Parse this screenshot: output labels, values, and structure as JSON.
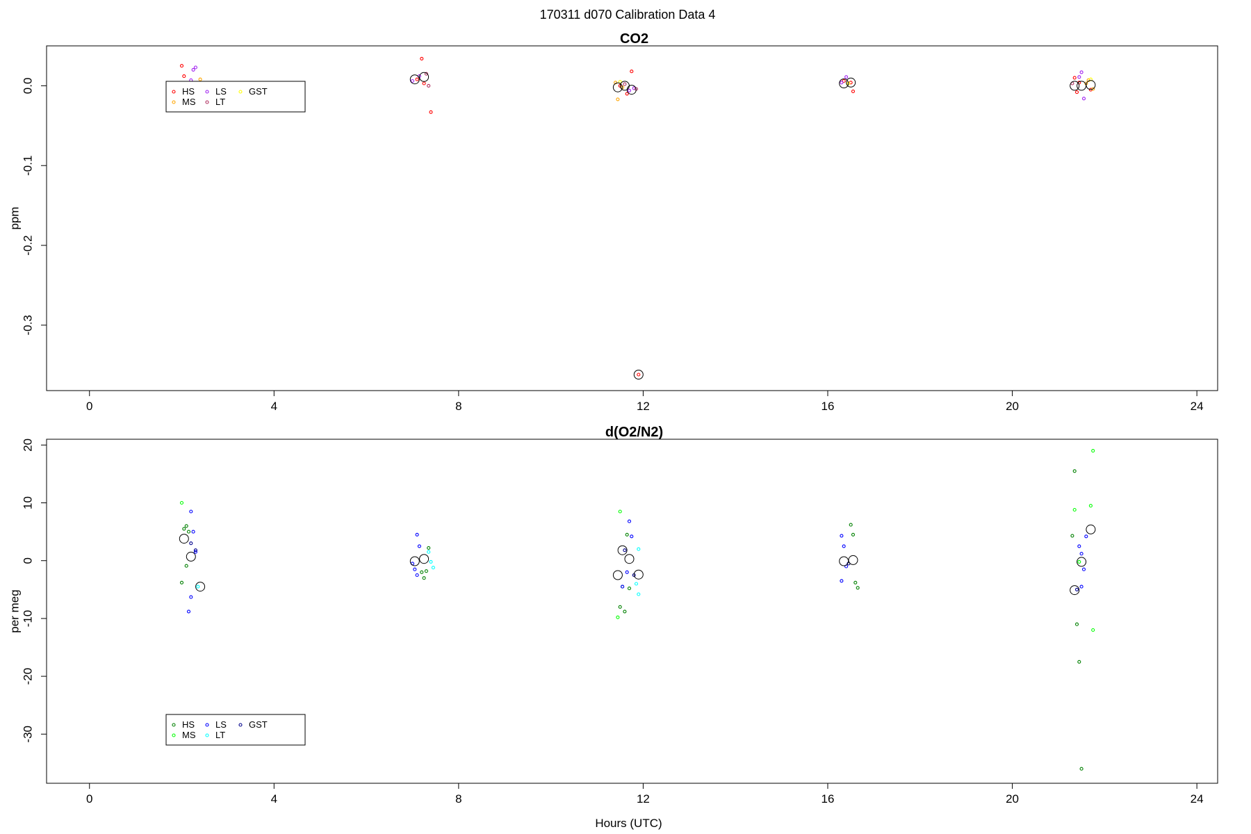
{
  "figure": {
    "title": "170311   d070   Calibration Data 4"
  },
  "chart_data": [
    {
      "type": "scatter",
      "title": "CO2",
      "xlabel": "",
      "ylabel": "ppm",
      "xlim": [
        -0.93,
        24.45
      ],
      "ylim": [
        -0.382,
        0.05
      ],
      "xticks": [
        "0",
        "4",
        "8",
        "12",
        "16",
        "20",
        "24"
      ],
      "yticks": [
        "0.0",
        "-0.1",
        "-0.2",
        "-0.3"
      ],
      "grid": false,
      "legend_position": "top-left",
      "series": [
        {
          "name": "HS",
          "color": "#ff0000",
          "points": [
            [
              2.0,
              0.025
            ],
            [
              2.05,
              0.012
            ],
            [
              7.1,
              0.008
            ],
            [
              7.2,
              0.034
            ],
            [
              7.25,
              0.003
            ],
            [
              7.4,
              -0.033
            ],
            [
              11.5,
              0.0
            ],
            [
              11.65,
              -0.01
            ],
            [
              11.75,
              0.018
            ],
            [
              11.9,
              -0.362
            ],
            [
              16.35,
              0.006
            ],
            [
              16.5,
              0.004
            ],
            [
              16.55,
              -0.007
            ],
            [
              21.35,
              0.01
            ],
            [
              21.4,
              -0.008
            ],
            [
              21.45,
              0.004
            ],
            [
              21.7,
              -0.005
            ]
          ]
        },
        {
          "name": "MS",
          "color": "#ffa500",
          "points": [
            [
              2.4,
              0.008
            ],
            [
              11.4,
              0.004
            ],
            [
              11.45,
              -0.017
            ],
            [
              11.55,
              -0.002
            ],
            [
              21.6,
              0.003
            ],
            [
              21.75,
              -0.004
            ],
            [
              21.65,
              0.007
            ]
          ]
        },
        {
          "name": "LS",
          "color": "#a020f0",
          "points": [
            [
              2.2,
              0.007
            ],
            [
              2.25,
              0.02
            ],
            [
              2.3,
              0.023
            ],
            [
              7.0,
              0.006
            ],
            [
              7.15,
              0.012
            ],
            [
              11.7,
              -0.006
            ],
            [
              11.8,
              -0.003
            ],
            [
              16.3,
              0.004
            ],
            [
              16.4,
              0.011
            ],
            [
              21.5,
              0.017
            ],
            [
              21.55,
              -0.016
            ],
            [
              21.45,
              0.011
            ]
          ]
        },
        {
          "name": "LT",
          "color": "#b03060",
          "points": [
            [
              7.3,
              0.015
            ],
            [
              7.35,
              0.0
            ],
            [
              11.6,
              0.002
            ],
            [
              11.85,
              -0.004
            ],
            [
              21.3,
              0.003
            ]
          ]
        },
        {
          "name": "GST",
          "color": "#ffff00",
          "points": [
            [
              11.5,
              0.005
            ],
            [
              16.45,
              0.003
            ],
            [
              21.7,
              0.008
            ]
          ]
        },
        {
          "name": "",
          "color": "#000000",
          "marker": "mean",
          "points": [
            [
              7.05,
              0.008
            ],
            [
              7.25,
              0.011
            ],
            [
              11.45,
              -0.002
            ],
            [
              11.6,
              0.0
            ],
            [
              11.75,
              -0.005
            ],
            [
              11.9,
              -0.362
            ],
            [
              16.35,
              0.003
            ],
            [
              16.5,
              0.004
            ],
            [
              21.35,
              0.0
            ],
            [
              21.5,
              0.0
            ],
            [
              21.7,
              0.001
            ]
          ]
        }
      ]
    },
    {
      "type": "scatter",
      "title": "d(O2/N2)",
      "xlabel": "Hours (UTC)",
      "ylabel": "per meg",
      "xlim": [
        -0.93,
        24.45
      ],
      "ylim": [
        -38.5,
        21.0
      ],
      "xticks": [
        "0",
        "4",
        "8",
        "12",
        "16",
        "20",
        "24"
      ],
      "yticks": [
        "20",
        "10",
        "0",
        "-10",
        "-20",
        "-30"
      ],
      "grid": false,
      "legend_position": "bottom-left",
      "series": [
        {
          "name": "HS",
          "color": "#008000",
          "points": [
            [
              2.05,
              5.5
            ],
            [
              2.1,
              6.0
            ],
            [
              2.15,
              5.0
            ],
            [
              2.0,
              -3.8
            ],
            [
              2.1,
              -0.9
            ],
            [
              7.2,
              -2.0
            ],
            [
              7.3,
              -1.8
            ],
            [
              7.25,
              -3.0
            ],
            [
              7.35,
              2.2
            ],
            [
              11.55,
              -4.5
            ],
            [
              11.65,
              4.5
            ],
            [
              11.7,
              -4.8
            ],
            [
              11.5,
              -8.0
            ],
            [
              11.6,
              -8.8
            ],
            [
              16.5,
              6.2
            ],
            [
              16.55,
              4.5
            ],
            [
              16.6,
              -3.8
            ],
            [
              16.65,
              -4.7
            ],
            [
              21.35,
              15.5
            ],
            [
              21.4,
              -11.0
            ],
            [
              21.45,
              -17.5
            ],
            [
              21.5,
              -36.0
            ],
            [
              21.3,
              4.3
            ]
          ]
        },
        {
          "name": "MS",
          "color": "#00ff00",
          "points": [
            [
              2.0,
              10.0
            ],
            [
              11.5,
              8.5
            ],
            [
              11.45,
              -9.8
            ],
            [
              21.35,
              8.8
            ],
            [
              21.7,
              9.5
            ],
            [
              21.75,
              -12.0
            ],
            [
              21.75,
              19.0
            ],
            [
              21.45,
              -0.2
            ]
          ]
        },
        {
          "name": "LS",
          "color": "#0000ff",
          "points": [
            [
              2.2,
              8.5
            ],
            [
              2.25,
              5.0
            ],
            [
              2.3,
              1.5
            ],
            [
              2.2,
              -6.3
            ],
            [
              2.15,
              -8.8
            ],
            [
              7.1,
              4.5
            ],
            [
              7.15,
              2.5
            ],
            [
              7.0,
              -0.5
            ],
            [
              7.05,
              -1.5
            ],
            [
              7.1,
              -2.5
            ],
            [
              11.7,
              6.8
            ],
            [
              11.75,
              4.2
            ],
            [
              11.65,
              -2.0
            ],
            [
              11.55,
              -4.5
            ],
            [
              16.3,
              4.3
            ],
            [
              16.35,
              2.5
            ],
            [
              16.3,
              -3.5
            ],
            [
              16.4,
              -1.0
            ],
            [
              21.45,
              2.5
            ],
            [
              21.5,
              1.2
            ],
            [
              21.55,
              -1.5
            ],
            [
              21.6,
              4.2
            ],
            [
              21.5,
              -4.5
            ]
          ]
        },
        {
          "name": "LT",
          "color": "#00ffff",
          "points": [
            [
              2.35,
              -4.5
            ],
            [
              7.35,
              1.5
            ],
            [
              7.4,
              -0.2
            ],
            [
              7.45,
              -1.2
            ],
            [
              11.9,
              2.0
            ],
            [
              11.85,
              -4.0
            ],
            [
              11.9,
              -5.8
            ]
          ]
        },
        {
          "name": "GST",
          "color": "#00008b",
          "points": [
            [
              2.2,
              3.0
            ],
            [
              2.3,
              1.8
            ],
            [
              11.6,
              1.8
            ],
            [
              11.8,
              -2.5
            ],
            [
              16.45,
              -0.5
            ],
            [
              21.4,
              -5.0
            ]
          ]
        },
        {
          "name": "",
          "color": "#000000",
          "marker": "mean",
          "points": [
            [
              2.05,
              3.8
            ],
            [
              2.2,
              0.7
            ],
            [
              2.4,
              -4.5
            ],
            [
              7.05,
              -0.1
            ],
            [
              7.25,
              0.3
            ],
            [
              11.45,
              -2.5
            ],
            [
              11.55,
              1.8
            ],
            [
              11.7,
              0.3
            ],
            [
              11.9,
              -2.4
            ],
            [
              16.35,
              -0.1
            ],
            [
              16.55,
              0.1
            ],
            [
              21.35,
              -5.1
            ],
            [
              21.5,
              -0.2
            ],
            [
              21.7,
              5.4
            ]
          ]
        }
      ]
    }
  ]
}
